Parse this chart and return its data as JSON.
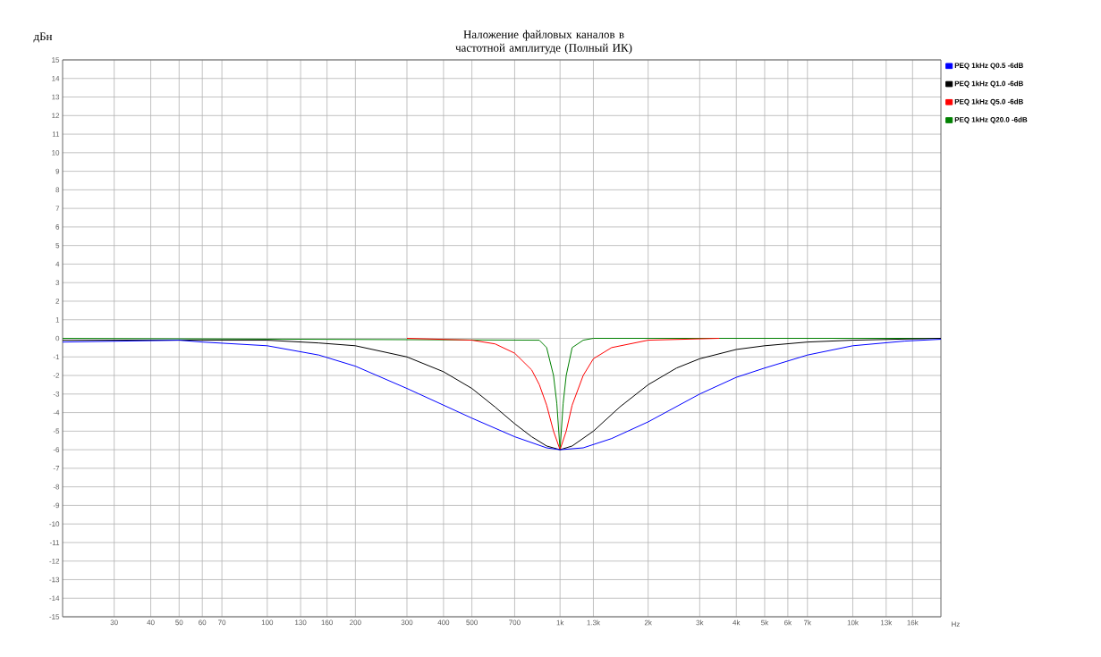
{
  "chart_data": {
    "type": "line",
    "title": "Наложение файловых каналов в частотной амплитуде (Полный ИК)",
    "ylabel": "дБн",
    "xlabel": "Hz",
    "log": "x",
    "grid": true,
    "legend": "right",
    "xlim": [
      20,
      20000
    ],
    "ylim": [
      -15,
      15
    ],
    "xticks": [
      30,
      40,
      50,
      60,
      70,
      100,
      130,
      160,
      200,
      300,
      400,
      500,
      700,
      {
        "value": 1000,
        "label": "1k"
      },
      {
        "value": 1300,
        "label": "1.3k"
      },
      {
        "value": 2000,
        "label": "2k"
      },
      {
        "value": 3000,
        "label": "3k"
      },
      {
        "value": 4000,
        "label": "4k"
      },
      {
        "value": 5000,
        "label": "5k"
      },
      {
        "value": 6000,
        "label": "6k"
      },
      {
        "value": 7000,
        "label": "7k"
      },
      {
        "value": 10000,
        "label": "10k"
      },
      {
        "value": 13000,
        "label": "13k"
      },
      {
        "value": 16000,
        "label": "16k"
      }
    ],
    "yticks": [
      -15,
      -14,
      -13,
      -12,
      -11,
      -10,
      -9,
      -8,
      -7,
      -6,
      -5,
      -4,
      -3,
      -2,
      -1,
      0,
      1,
      2,
      3,
      4,
      5,
      6,
      7,
      8,
      9,
      10,
      11,
      12,
      13,
      14,
      15
    ],
    "series": [
      {
        "name": "PEQ 1kHz Q0.5 -6dB",
        "color": "#0000ff",
        "x": [
          20,
          50,
          60,
          100,
          150,
          200,
          300,
          400,
          500,
          700,
          900,
          1000,
          1200,
          1500,
          2000,
          3000,
          4000,
          5000,
          7000,
          10000,
          15000,
          20000
        ],
        "values": [
          -0.2,
          -0.1,
          -0.2,
          -0.4,
          -0.9,
          -1.5,
          -2.7,
          -3.6,
          -4.3,
          -5.3,
          -5.9,
          -6,
          -5.9,
          -5.4,
          -4.5,
          -3.0,
          -2.1,
          -1.6,
          -0.9,
          -0.4,
          -0.15,
          -0.05
        ]
      },
      {
        "name": "PEQ 1kHz Q1.0 -6dB",
        "color": "#000000",
        "x": [
          20,
          100,
          150,
          200,
          300,
          400,
          500,
          600,
          700,
          800,
          900,
          1000,
          1100,
          1300,
          1600,
          2000,
          2500,
          3000,
          4000,
          5000,
          7000,
          10000,
          20000
        ],
        "values": [
          -0.1,
          -0.1,
          -0.25,
          -0.4,
          -1.0,
          -1.8,
          -2.7,
          -3.7,
          -4.6,
          -5.3,
          -5.8,
          -6,
          -5.8,
          -5.0,
          -3.7,
          -2.5,
          -1.6,
          -1.1,
          -0.6,
          -0.4,
          -0.2,
          -0.1,
          0
        ]
      },
      {
        "name": "PEQ 1kHz Q5.0 -6dB",
        "color": "#ff0000",
        "x": [
          300,
          500,
          600,
          700,
          800,
          850,
          900,
          950,
          1000,
          1050,
          1100,
          1200,
          1300,
          1500,
          2000,
          3500
        ],
        "values": [
          0,
          -0.1,
          -0.3,
          -0.8,
          -1.7,
          -2.5,
          -3.6,
          -5,
          -6,
          -5,
          -3.6,
          -2.0,
          -1.1,
          -0.5,
          -0.1,
          0
        ]
      },
      {
        "name": "PEQ 1kHz Q20.0 -6dB",
        "color": "#008000",
        "x": [
          20,
          850,
          900,
          950,
          975,
          1000,
          1025,
          1050,
          1100,
          1200,
          1300,
          20000
        ],
        "values": [
          0,
          -0.1,
          -0.5,
          -2.0,
          -3.5,
          -6,
          -3.5,
          -2.0,
          -0.5,
          -0.1,
          0,
          0
        ]
      }
    ]
  }
}
